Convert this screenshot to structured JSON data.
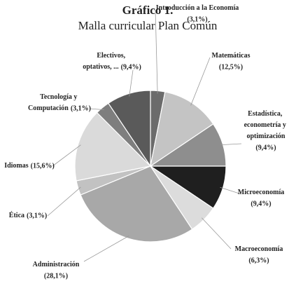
{
  "chart_data": {
    "type": "pie",
    "title": "Gráfico 1.",
    "subtitle": "Malla curricular Plan Común",
    "categories": [
      "Introducción a la Economía",
      "Matemáticas",
      "Estadística, econometría y optimización",
      "Microeconomía",
      "Macroeconomía",
      "Administración",
      "Ética",
      "Idiomas",
      "Tecnología y Computación",
      "Electivos, optativos, ..."
    ],
    "values": [
      3.1,
      12.5,
      9.4,
      9.4,
      6.3,
      28.1,
      3.1,
      15.6,
      3.1,
      9.4
    ],
    "value_labels": [
      "(3,1%)",
      "(12,5%)",
      "(9,4%)",
      "(9,4%)",
      "(6,3%)",
      "(28,1%)",
      "(3,1%)",
      "(15,6%)",
      "(3,1%)",
      "(9,4%)"
    ],
    "colors": [
      "#6b6b6b",
      "#c4c4c4",
      "#8e8e8e",
      "#1f1f1f",
      "#dcdcdc",
      "#a8a8a8",
      "#c2c2c2",
      "#dadada",
      "#7e7e7e",
      "#5a5a5a"
    ]
  }
}
